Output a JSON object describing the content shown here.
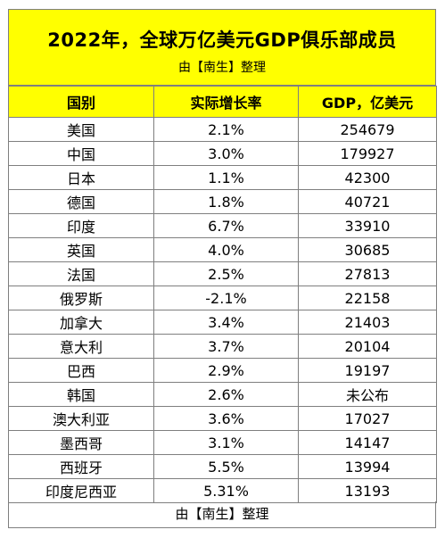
{
  "title": "2022年，全球万亿美元GDP俱乐部成员",
  "subtitle": "由【南生】整理",
  "footer": "由【南生】整理",
  "headers": [
    "国别",
    "实际增长率",
    "GDP，亿美元"
  ],
  "rows": [
    {
      "country": "美国",
      "growth": "2.1%",
      "gdp": "254679"
    },
    {
      "country": "中国",
      "growth": "3.0%",
      "gdp": "179927"
    },
    {
      "country": "日本",
      "growth": "1.1%",
      "gdp": "42300"
    },
    {
      "country": "德国",
      "growth": "1.8%",
      "gdp": "40721"
    },
    {
      "country": "印度",
      "growth": "6.7%",
      "gdp": "33910"
    },
    {
      "country": "英国",
      "growth": "4.0%",
      "gdp": "30685"
    },
    {
      "country": "法国",
      "growth": "2.5%",
      "gdp": "27813"
    },
    {
      "country": "俄罗斯",
      "growth": "-2.1%",
      "gdp": "22158"
    },
    {
      "country": "加拿大",
      "growth": "3.4%",
      "gdp": "21403"
    },
    {
      "country": "意大利",
      "growth": "3.7%",
      "gdp": "20104"
    },
    {
      "country": "巴西",
      "growth": "2.9%",
      "gdp": "19197"
    },
    {
      "country": "韩国",
      "growth": "2.6%",
      "gdp": "未公布"
    },
    {
      "country": "澳大利亚",
      "growth": "3.6%",
      "gdp": "17027"
    },
    {
      "country": "墨西哥",
      "growth": "3.1%",
      "gdp": "14147"
    },
    {
      "country": "西班牙",
      "growth": "5.5%",
      "gdp": "13994"
    },
    {
      "country": "印度尼西亚",
      "growth": "5.31%",
      "gdp": "13193"
    }
  ],
  "colors": {
    "header_fill": "#ffff00",
    "grid": "#7f7f7f"
  }
}
